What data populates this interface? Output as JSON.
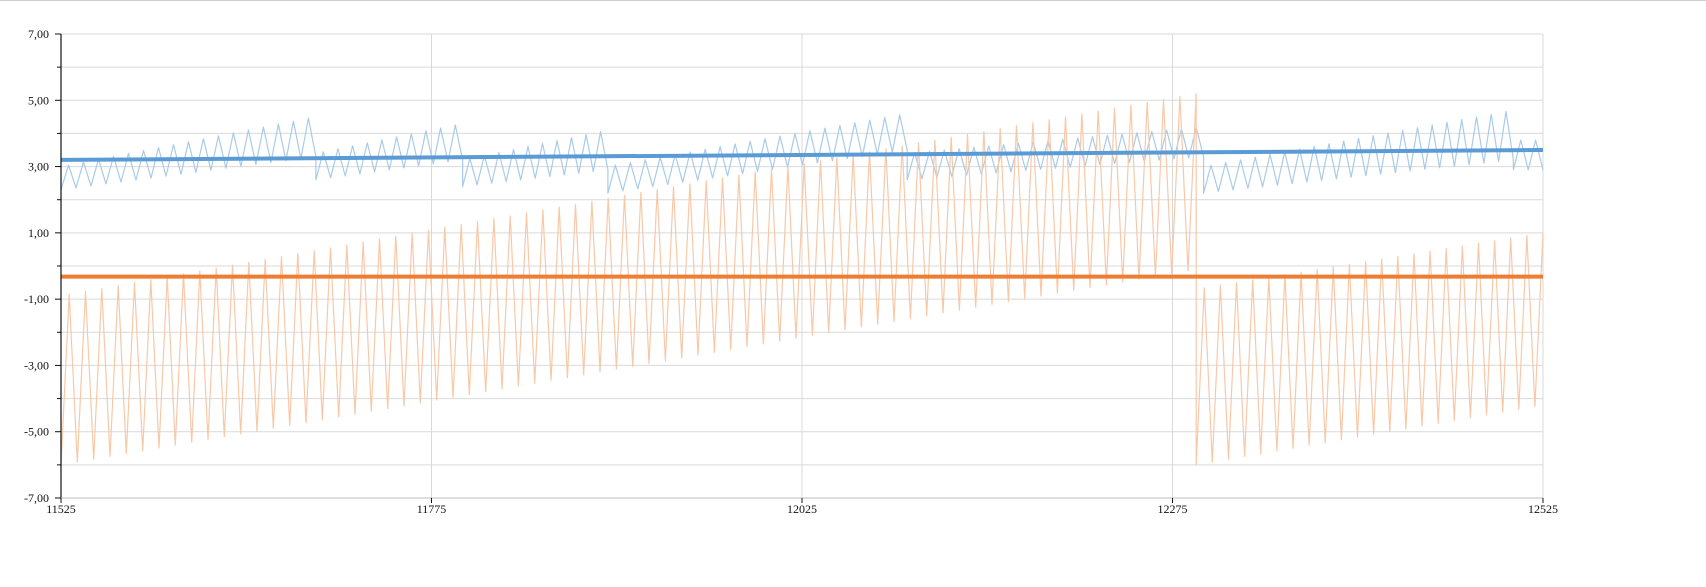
{
  "chart_data": {
    "type": "line",
    "title": "",
    "xlabel": "",
    "ylabel": "",
    "xlim": [
      11525,
      12525
    ],
    "ylim": [
      -7,
      7
    ],
    "grid": true,
    "legend": "none",
    "x_ticks": [
      {
        "value": 11525,
        "label": "11525"
      },
      {
        "value": 11775,
        "label": "11775"
      },
      {
        "value": 12025,
        "label": "12025"
      },
      {
        "value": 12275,
        "label": "12275"
      },
      {
        "value": 12525,
        "label": "12525"
      }
    ],
    "y_ticks": [
      {
        "value": 7,
        "label": "7,00"
      },
      {
        "value": 5,
        "label": "5,00"
      },
      {
        "value": 3,
        "label": "3,00"
      },
      {
        "value": 1,
        "label": "1,00"
      },
      {
        "value": -1,
        "label": "-1,00"
      },
      {
        "value": -3,
        "label": "-3,00"
      },
      {
        "value": -5,
        "label": "-5,00"
      },
      {
        "value": -7,
        "label": "-7,00"
      }
    ],
    "y_minor_step": 1,
    "series": [
      {
        "kind": "oscillating",
        "color": "#a9cbe8",
        "period": 5,
        "segments": [
          {
            "x_start": 11525,
            "x_end": 11697,
            "lo_start": 2.3,
            "lo_end": 3.3,
            "hi_start": 3.0,
            "hi_end": 4.5
          },
          {
            "x_start": 11697,
            "x_end": 11796,
            "lo_start": 2.6,
            "lo_end": 3.2,
            "hi_start": 3.4,
            "hi_end": 4.3
          },
          {
            "x_start": 11796,
            "x_end": 11894,
            "lo_start": 2.4,
            "lo_end": 2.9,
            "hi_start": 3.2,
            "hi_end": 4.1
          },
          {
            "x_start": 11894,
            "x_end": 12096,
            "lo_start": 2.2,
            "lo_end": 3.5,
            "hi_start": 3.0,
            "hi_end": 4.6
          },
          {
            "x_start": 12096,
            "x_end": 12296,
            "lo_start": 2.6,
            "lo_end": 3.3,
            "hi_start": 3.4,
            "hi_end": 4.2
          },
          {
            "x_start": 12296,
            "x_end": 12505,
            "lo_start": 2.2,
            "lo_end": 3.2,
            "hi_start": 3.0,
            "hi_end": 4.7
          },
          {
            "x_start": 12505,
            "x_end": 12525,
            "lo_start": 2.9,
            "lo_end": 2.9,
            "hi_start": 3.8,
            "hi_end": 3.8
          }
        ]
      },
      {
        "kind": "oscillating",
        "color": "#f8c8a8",
        "period": 5.5,
        "segments": [
          {
            "x_start": 11525,
            "x_end": 12291,
            "lo_start": -6.0,
            "lo_end": -0.1,
            "hi_start": -0.9,
            "hi_end": 5.2
          },
          {
            "x_start": 12291,
            "x_end": 12525,
            "lo_start": -6.0,
            "lo_end": -4.2,
            "hi_start": -0.7,
            "hi_end": 1.0
          }
        ]
      },
      {
        "kind": "trend",
        "color": "#5b9bd5",
        "points": [
          [
            11525,
            3.2
          ],
          [
            12525,
            3.5
          ]
        ]
      },
      {
        "kind": "trend",
        "color": "#ed7d31",
        "points": [
          [
            11525,
            -0.32
          ],
          [
            12525,
            -0.32
          ]
        ]
      }
    ]
  }
}
